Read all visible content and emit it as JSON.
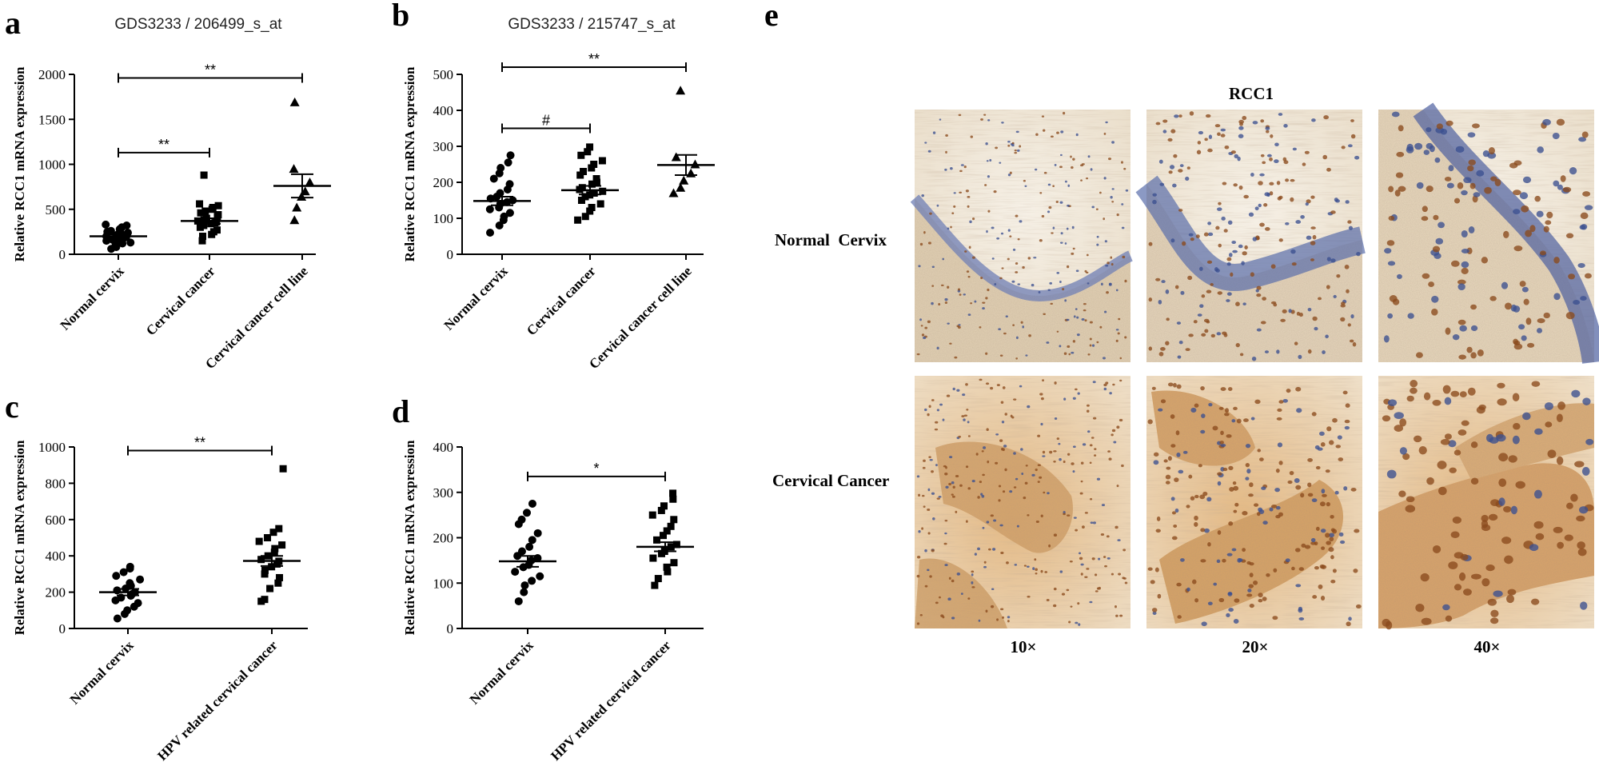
{
  "chart_data": [
    {
      "panel": "a",
      "type": "scatter",
      "title": "GDS3233 / 206499_s_at",
      "ylabel": "Relative RCC1 mRNA expression",
      "ylim": [
        0,
        2000
      ],
      "yticks": [
        0,
        500,
        1000,
        1500,
        2000
      ],
      "categories": [
        "Normal cervix",
        "Cervical cancer",
        "Cervical cancer cell line"
      ],
      "groups": [
        {
          "name": "Normal cervix",
          "marker": "circle",
          "mean": 200,
          "sem": 20,
          "values": [
            60,
            80,
            100,
            120,
            130,
            150,
            160,
            170,
            180,
            190,
            200,
            210,
            220,
            230,
            240,
            250,
            260,
            280,
            300,
            320,
            330
          ]
        },
        {
          "name": "Cervical cancer",
          "marker": "square",
          "mean": 370,
          "sem": 30,
          "values": [
            150,
            200,
            220,
            250,
            270,
            300,
            320,
            340,
            350,
            360,
            370,
            380,
            400,
            420,
            440,
            460,
            480,
            500,
            520,
            540,
            560,
            880
          ]
        },
        {
          "name": "Cervical cancer cell line",
          "marker": "triangle",
          "mean": 760,
          "sem": 130,
          "values": [
            380,
            520,
            640,
            700,
            800,
            950,
            1690
          ]
        }
      ],
      "significance": [
        {
          "from": 0,
          "to": 1,
          "label": "**",
          "y": 1130
        },
        {
          "from": 0,
          "to": 2,
          "label": "**",
          "y": 1960
        }
      ]
    },
    {
      "panel": "b",
      "type": "scatter",
      "title": "GDS3233 / 215747_s_at",
      "ylabel": "Relative RCC1 mRNA expression",
      "ylim": [
        0,
        500
      ],
      "yticks": [
        0,
        100,
        200,
        300,
        400,
        500
      ],
      "categories": [
        "Normal cervix",
        "Cervical cancer",
        "Cervical cancer cell line"
      ],
      "groups": [
        {
          "name": "Normal cervix",
          "marker": "circle",
          "mean": 148,
          "sem": 12,
          "values": [
            60,
            80,
            95,
            105,
            115,
            125,
            130,
            140,
            145,
            150,
            155,
            160,
            170,
            180,
            195,
            210,
            225,
            240,
            255,
            275
          ]
        },
        {
          "name": "Cervical cancer",
          "marker": "square",
          "mean": 178,
          "sem": 12,
          "values": [
            95,
            105,
            120,
            130,
            140,
            150,
            160,
            165,
            170,
            175,
            180,
            185,
            195,
            200,
            210,
            220,
            230,
            240,
            250,
            260,
            275,
            285,
            298
          ]
        },
        {
          "name": "Cervical cancer cell line",
          "marker": "triangle",
          "mean": 248,
          "sem": 28,
          "values": [
            170,
            185,
            205,
            225,
            250,
            270,
            455
          ]
        }
      ],
      "significance": [
        {
          "from": 0,
          "to": 1,
          "label": "#",
          "y": 350
        },
        {
          "from": 0,
          "to": 2,
          "label": "**",
          "y": 520
        }
      ]
    },
    {
      "panel": "c",
      "type": "scatter",
      "title": "",
      "ylabel": "Relative RCC1 mRNA expression",
      "ylim": [
        0,
        1000
      ],
      "yticks": [
        0,
        200,
        400,
        600,
        800,
        1000
      ],
      "categories": [
        "Normal cervix",
        "HPV related cervical cancer"
      ],
      "groups": [
        {
          "name": "Normal cervix",
          "marker": "circle",
          "mean": 200,
          "sem": 18,
          "values": [
            55,
            80,
            100,
            120,
            140,
            155,
            170,
            180,
            190,
            200,
            210,
            220,
            235,
            250,
            270,
            290,
            310,
            330,
            340
          ]
        },
        {
          "name": "HPV related cervical cancer",
          "marker": "square",
          "mean": 372,
          "sem": 28,
          "values": [
            150,
            160,
            220,
            250,
            280,
            300,
            320,
            340,
            355,
            370,
            380,
            400,
            420,
            440,
            460,
            480,
            500,
            530,
            550,
            880
          ]
        }
      ],
      "significance": [
        {
          "from": 0,
          "to": 1,
          "label": "**",
          "y": 980
        }
      ]
    },
    {
      "panel": "d",
      "type": "scatter",
      "title": "",
      "ylabel": "Relative RCC1 mRNA expression",
      "ylim": [
        0,
        400
      ],
      "yticks": [
        0,
        100,
        200,
        300,
        400
      ],
      "categories": [
        "Normal cervix",
        "HPV related cervical cancer"
      ],
      "groups": [
        {
          "name": "Normal cervix",
          "marker": "circle",
          "mean": 148,
          "sem": 12,
          "values": [
            60,
            80,
            95,
            105,
            115,
            125,
            135,
            140,
            150,
            155,
            160,
            170,
            180,
            195,
            210,
            230,
            240,
            255,
            275
          ]
        },
        {
          "name": "HPV related cervical cancer",
          "marker": "square",
          "mean": 180,
          "sem": 10,
          "values": [
            95,
            110,
            125,
            135,
            145,
            155,
            165,
            170,
            180,
            185,
            195,
            205,
            215,
            225,
            240,
            250,
            260,
            270,
            285,
            298
          ]
        }
      ],
      "significance": [
        {
          "from": 0,
          "to": 1,
          "label": "*",
          "y": 335
        }
      ]
    }
  ],
  "panel_labels": {
    "a": "a",
    "b": "b",
    "c": "c",
    "d": "d",
    "e": "e"
  },
  "ihc": {
    "title": "RCC1",
    "rows": [
      "Normal  Cervix",
      "Cervical Cancer"
    ],
    "magnifications": [
      "10×",
      "20×",
      "40×"
    ],
    "colors": {
      "stroma": "#efe6d6",
      "hematoxylin": "#3b4f8f",
      "dab": "#8a4a1c",
      "tumor_cytoplasm": "#d9a86a"
    }
  }
}
